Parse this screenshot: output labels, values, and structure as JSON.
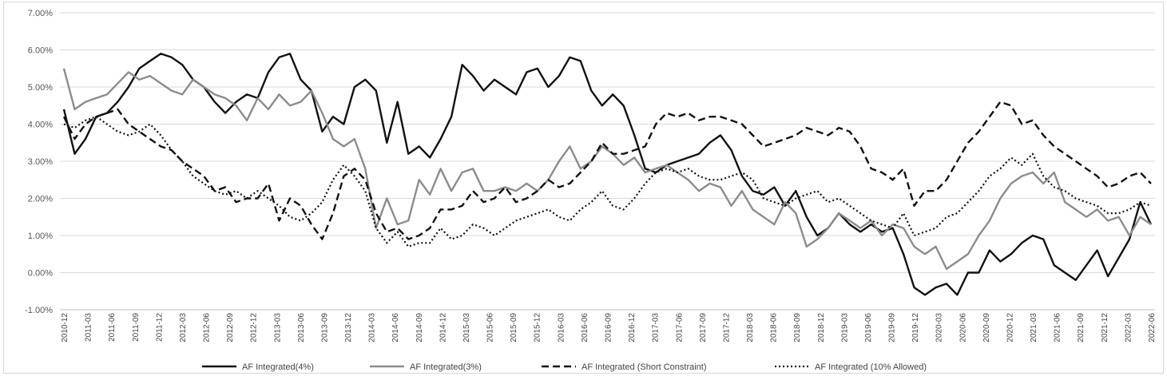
{
  "chart_data": {
    "type": "line",
    "title": "",
    "xlabel": "",
    "ylabel": "",
    "ylim": [
      -0.01,
      0.07
    ],
    "ytick_labels": [
      "-1.00%",
      "0.00%",
      "1.00%",
      "2.00%",
      "3.00%",
      "4.00%",
      "5.00%",
      "6.00%",
      "7.00%"
    ],
    "xtick_labels": [
      "2010-12",
      "2011-03",
      "2011-06",
      "2011-09",
      "2011-12",
      "2012-03",
      "2012-06",
      "2012-09",
      "2012-12",
      "2013-03",
      "2013-06",
      "2013-09",
      "2013-12",
      "2014-03",
      "2014-06",
      "2014-09",
      "2014-12",
      "2015-03",
      "2015-06",
      "2015-09",
      "2015-12",
      "2016-03",
      "2016-06",
      "2016-09",
      "2016-12",
      "2017-03",
      "2017-06",
      "2017-09",
      "2017-12",
      "2018-03",
      "2018-06",
      "2018-09",
      "2018-12",
      "2019-03",
      "2019-06",
      "2019-09",
      "2019-12",
      "2020-03",
      "2020-06",
      "2020-09",
      "2020-12",
      "2021-03",
      "2021-06",
      "2021-09",
      "2021-12",
      "2022-03",
      "2022-06"
    ],
    "grid": true,
    "legend_position": "bottom",
    "series": [
      {
        "name": "AF Integrated(4%)",
        "style": "solid",
        "color": "#111111",
        "values": [
          0.044,
          0.032,
          0.036,
          0.042,
          0.043,
          0.046,
          0.05,
          0.055,
          0.057,
          0.059,
          0.058,
          0.056,
          0.052,
          0.05,
          0.046,
          0.043,
          0.046,
          0.048,
          0.047,
          0.054,
          0.058,
          0.059,
          0.052,
          0.049,
          0.038,
          0.042,
          0.04,
          0.05,
          0.052,
          0.049,
          0.035,
          0.046,
          0.032,
          0.034,
          0.031,
          0.036,
          0.042,
          0.056,
          0.053,
          0.049,
          0.052,
          0.05,
          0.048,
          0.054,
          0.055,
          0.05,
          0.053,
          0.058,
          0.057,
          0.049,
          0.045,
          0.048,
          0.045,
          0.037,
          0.028,
          0.027,
          0.029,
          0.03,
          0.031,
          0.032,
          0.035,
          0.037,
          0.033,
          0.026,
          0.022,
          0.021,
          0.023,
          0.018,
          0.022,
          0.015,
          0.01,
          0.012,
          0.016,
          0.013,
          0.011,
          0.013,
          0.011,
          0.012,
          0.005,
          -0.004,
          -0.006,
          -0.004,
          -0.003,
          -0.006,
          0.0,
          0.0,
          0.006,
          0.003,
          0.005,
          0.008,
          0.01,
          0.009,
          0.002,
          0.0,
          -0.002,
          0.002,
          0.006,
          -0.001,
          0.004,
          0.009,
          0.019,
          0.013
        ]
      },
      {
        "name": "AF Integrated(3%)",
        "style": "solid",
        "color": "#8c8c8c",
        "values": [
          0.055,
          0.044,
          0.046,
          0.047,
          0.048,
          0.051,
          0.054,
          0.052,
          0.053,
          0.051,
          0.049,
          0.048,
          0.052,
          0.05,
          0.048,
          0.047,
          0.045,
          0.041,
          0.047,
          0.044,
          0.048,
          0.045,
          0.046,
          0.049,
          0.043,
          0.036,
          0.034,
          0.036,
          0.028,
          0.012,
          0.02,
          0.013,
          0.014,
          0.025,
          0.021,
          0.028,
          0.022,
          0.027,
          0.028,
          0.022,
          0.022,
          0.023,
          0.022,
          0.024,
          0.022,
          0.025,
          0.03,
          0.034,
          0.028,
          0.03,
          0.034,
          0.032,
          0.029,
          0.031,
          0.027,
          0.028,
          0.029,
          0.027,
          0.025,
          0.022,
          0.024,
          0.023,
          0.018,
          0.022,
          0.017,
          0.015,
          0.013,
          0.019,
          0.016,
          0.007,
          0.009,
          0.012,
          0.016,
          0.014,
          0.012,
          0.014,
          0.01,
          0.013,
          0.012,
          0.007,
          0.005,
          0.007,
          0.001,
          0.003,
          0.005,
          0.01,
          0.014,
          0.02,
          0.024,
          0.026,
          0.027,
          0.024,
          0.027,
          0.019,
          0.017,
          0.015,
          0.017,
          0.014,
          0.015,
          0.01,
          0.015,
          0.013
        ]
      },
      {
        "name": "AF Integrated (Short Constraint)",
        "style": "dashed",
        "color": "#111111",
        "values": [
          0.042,
          0.036,
          0.04,
          0.042,
          0.043,
          0.044,
          0.04,
          0.038,
          0.036,
          0.034,
          0.033,
          0.03,
          0.028,
          0.026,
          0.022,
          0.023,
          0.019,
          0.02,
          0.02,
          0.024,
          0.014,
          0.02,
          0.018,
          0.013,
          0.009,
          0.016,
          0.026,
          0.028,
          0.025,
          0.016,
          0.011,
          0.012,
          0.009,
          0.01,
          0.012,
          0.017,
          0.017,
          0.018,
          0.022,
          0.019,
          0.02,
          0.023,
          0.019,
          0.02,
          0.022,
          0.025,
          0.023,
          0.024,
          0.027,
          0.03,
          0.035,
          0.032,
          0.032,
          0.033,
          0.034,
          0.04,
          0.043,
          0.042,
          0.043,
          0.041,
          0.042,
          0.042,
          0.041,
          0.04,
          0.037,
          0.034,
          0.035,
          0.036,
          0.037,
          0.039,
          0.038,
          0.037,
          0.039,
          0.038,
          0.034,
          0.028,
          0.027,
          0.025,
          0.028,
          0.018,
          0.022,
          0.022,
          0.025,
          0.03,
          0.035,
          0.038,
          0.042,
          0.046,
          0.045,
          0.04,
          0.041,
          0.037,
          0.034,
          0.032,
          0.03,
          0.028,
          0.026,
          0.023,
          0.024,
          0.026,
          0.027,
          0.024
        ]
      },
      {
        "name": "AF Integrated (10% Allowed)",
        "style": "dotted",
        "color": "#111111",
        "values": [
          0.04,
          0.039,
          0.041,
          0.042,
          0.04,
          0.038,
          0.037,
          0.038,
          0.04,
          0.037,
          0.033,
          0.03,
          0.026,
          0.024,
          0.022,
          0.021,
          0.022,
          0.02,
          0.022,
          0.02,
          0.018,
          0.015,
          0.014,
          0.016,
          0.019,
          0.025,
          0.029,
          0.026,
          0.022,
          0.012,
          0.008,
          0.011,
          0.007,
          0.008,
          0.008,
          0.012,
          0.009,
          0.01,
          0.013,
          0.012,
          0.01,
          0.012,
          0.014,
          0.015,
          0.016,
          0.017,
          0.015,
          0.014,
          0.017,
          0.019,
          0.022,
          0.018,
          0.017,
          0.02,
          0.024,
          0.027,
          0.028,
          0.027,
          0.028,
          0.026,
          0.025,
          0.025,
          0.026,
          0.027,
          0.025,
          0.02,
          0.019,
          0.018,
          0.02,
          0.021,
          0.022,
          0.019,
          0.02,
          0.018,
          0.016,
          0.014,
          0.013,
          0.012,
          0.016,
          0.01,
          0.011,
          0.012,
          0.015,
          0.016,
          0.019,
          0.022,
          0.026,
          0.028,
          0.031,
          0.029,
          0.032,
          0.026,
          0.023,
          0.022,
          0.02,
          0.019,
          0.018,
          0.016,
          0.016,
          0.017,
          0.019,
          0.018
        ]
      }
    ]
  }
}
